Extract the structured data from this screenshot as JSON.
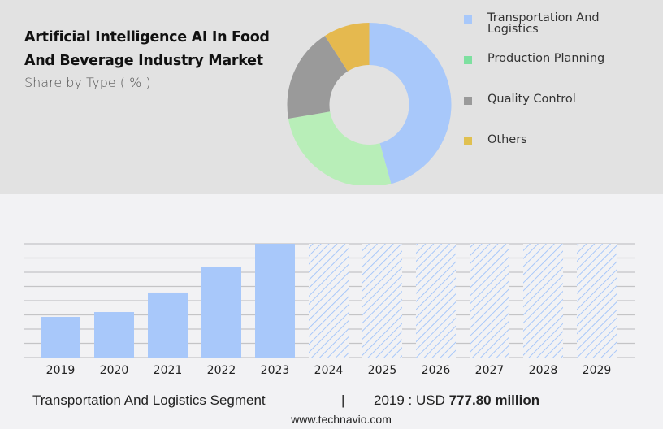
{
  "header": {
    "title_line1": "Artificial Intelligence AI In Food",
    "title_line2": "And Beverage Industry Market",
    "subtitle": "Share by Type ( % )"
  },
  "legend": [
    {
      "label_line1": "Transportation And",
      "label_line2": "Logistics",
      "color": "#a8c8fa"
    },
    {
      "label_line1": "Production Planning",
      "label_line2": "",
      "color": "#7ee0a0"
    },
    {
      "label_line1": "Quality Control",
      "label_line2": "",
      "color": "#9a9a9a"
    },
    {
      "label_line1": "Others",
      "label_line2": "",
      "color": "#e0c050"
    }
  ],
  "footer": {
    "segment": "Transportation And Logistics Segment",
    "separator": "|",
    "year_prefix": "2019 : USD ",
    "value": "777.80 million",
    "url": "www.technavio.com"
  },
  "chart_data": [
    {
      "type": "pie",
      "title": "Artificial Intelligence AI In Food And Beverage Industry Market",
      "subtitle": "Share by Type ( % )",
      "donut": true,
      "categories": [
        "Transportation And Logistics",
        "Production Planning",
        "Quality Control",
        "Others"
      ],
      "values": [
        45.7,
        26.6,
        18.6,
        9.1
      ],
      "colors": [
        "#a8c8fa",
        "#b8eeb8",
        "#9a9a9a",
        "#e5b94f"
      ],
      "legend_position": "right"
    },
    {
      "type": "bar",
      "title": "Transportation And Logistics Segment",
      "categories": [
        "2019",
        "2020",
        "2021",
        "2022",
        "2023",
        "2024",
        "2025",
        "2026",
        "2027",
        "2028",
        "2029"
      ],
      "values": [
        777.8,
        871,
        1245,
        1727,
        2178,
        null,
        null,
        null,
        null,
        null,
        null
      ],
      "forecast": [
        "2024",
        "2025",
        "2026",
        "2027",
        "2028",
        "2029"
      ],
      "xlabel": "",
      "ylabel": "",
      "grid": true,
      "annotation": "2019 : USD 777.80 million",
      "bar_color": "#a8c8fa"
    }
  ]
}
